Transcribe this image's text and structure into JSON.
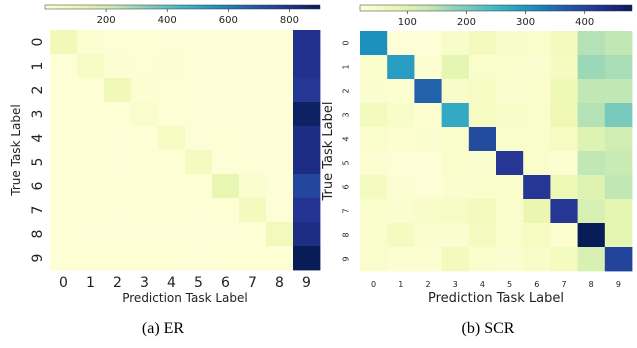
{
  "chart_data": [
    {
      "type": "heatmap",
      "caption": "(a)  ER",
      "xlabel": "Prediction Task Label",
      "ylabel": "True Task Label",
      "x_categories": [
        "0",
        "1",
        "2",
        "3",
        "4",
        "5",
        "6",
        "7",
        "8",
        "9"
      ],
      "y_categories": [
        "0",
        "1",
        "2",
        "3",
        "4",
        "5",
        "6",
        "7",
        "8",
        "9"
      ],
      "colorbar": {
        "position": "top",
        "range": [
          0,
          900
        ],
        "ticks": [
          200,
          400,
          600,
          800
        ],
        "tick_labels": [
          "200",
          "400",
          "600",
          "800"
        ],
        "colormap": "YlGnBu"
      },
      "matrix": [
        [
          90,
          20,
          15,
          15,
          10,
          10,
          10,
          10,
          10,
          800
        ],
        [
          15,
          55,
          20,
          15,
          20,
          10,
          10,
          10,
          10,
          800
        ],
        [
          15,
          15,
          95,
          20,
          15,
          10,
          10,
          10,
          10,
          780
        ],
        [
          15,
          15,
          15,
          40,
          15,
          10,
          10,
          10,
          10,
          880
        ],
        [
          15,
          15,
          10,
          15,
          65,
          10,
          15,
          10,
          10,
          820
        ],
        [
          15,
          15,
          10,
          15,
          15,
          70,
          10,
          10,
          10,
          820
        ],
        [
          15,
          15,
          15,
          15,
          15,
          15,
          130,
          30,
          10,
          740
        ],
        [
          15,
          15,
          10,
          15,
          15,
          10,
          15,
          80,
          10,
          790
        ],
        [
          15,
          10,
          10,
          10,
          10,
          10,
          10,
          15,
          85,
          820
        ],
        [
          15,
          15,
          15,
          15,
          15,
          10,
          15,
          15,
          15,
          900
        ]
      ]
    },
    {
      "type": "heatmap",
      "caption": "(b)  SCR",
      "xlabel": "Prediction Task Label",
      "ylabel": "True Task Label",
      "x_categories": [
        "0",
        "1",
        "2",
        "3",
        "4",
        "5",
        "6",
        "7",
        "8",
        "9"
      ],
      "y_categories": [
        "0",
        "1",
        "2",
        "3",
        "4",
        "5",
        "6",
        "7",
        "8",
        "9"
      ],
      "colorbar": {
        "position": "top",
        "range": [
          20,
          480
        ],
        "ticks": [
          100,
          200,
          300,
          400
        ],
        "tick_labels": [
          "100",
          "200",
          "300",
          "400"
        ],
        "colormap": "YlGnBu"
      },
      "matrix": [
        [
          310,
          25,
          25,
          45,
          60,
          45,
          40,
          60,
          150,
          140
        ],
        [
          40,
          290,
          30,
          90,
          40,
          40,
          35,
          55,
          170,
          160
        ],
        [
          35,
          30,
          360,
          45,
          50,
          35,
          40,
          70,
          140,
          140
        ],
        [
          60,
          45,
          30,
          270,
          50,
          45,
          40,
          75,
          150,
          200
        ],
        [
          40,
          30,
          35,
          40,
          390,
          40,
          40,
          50,
          100,
          120
        ],
        [
          30,
          25,
          25,
          40,
          35,
          420,
          40,
          30,
          140,
          130
        ],
        [
          55,
          30,
          25,
          35,
          40,
          40,
          420,
          70,
          100,
          140
        ],
        [
          40,
          35,
          45,
          50,
          60,
          40,
          80,
          420,
          110,
          90
        ],
        [
          40,
          55,
          35,
          35,
          55,
          40,
          50,
          30,
          480,
          90
        ],
        [
          40,
          30,
          30,
          60,
          40,
          35,
          45,
          55,
          110,
          400
        ]
      ]
    }
  ]
}
